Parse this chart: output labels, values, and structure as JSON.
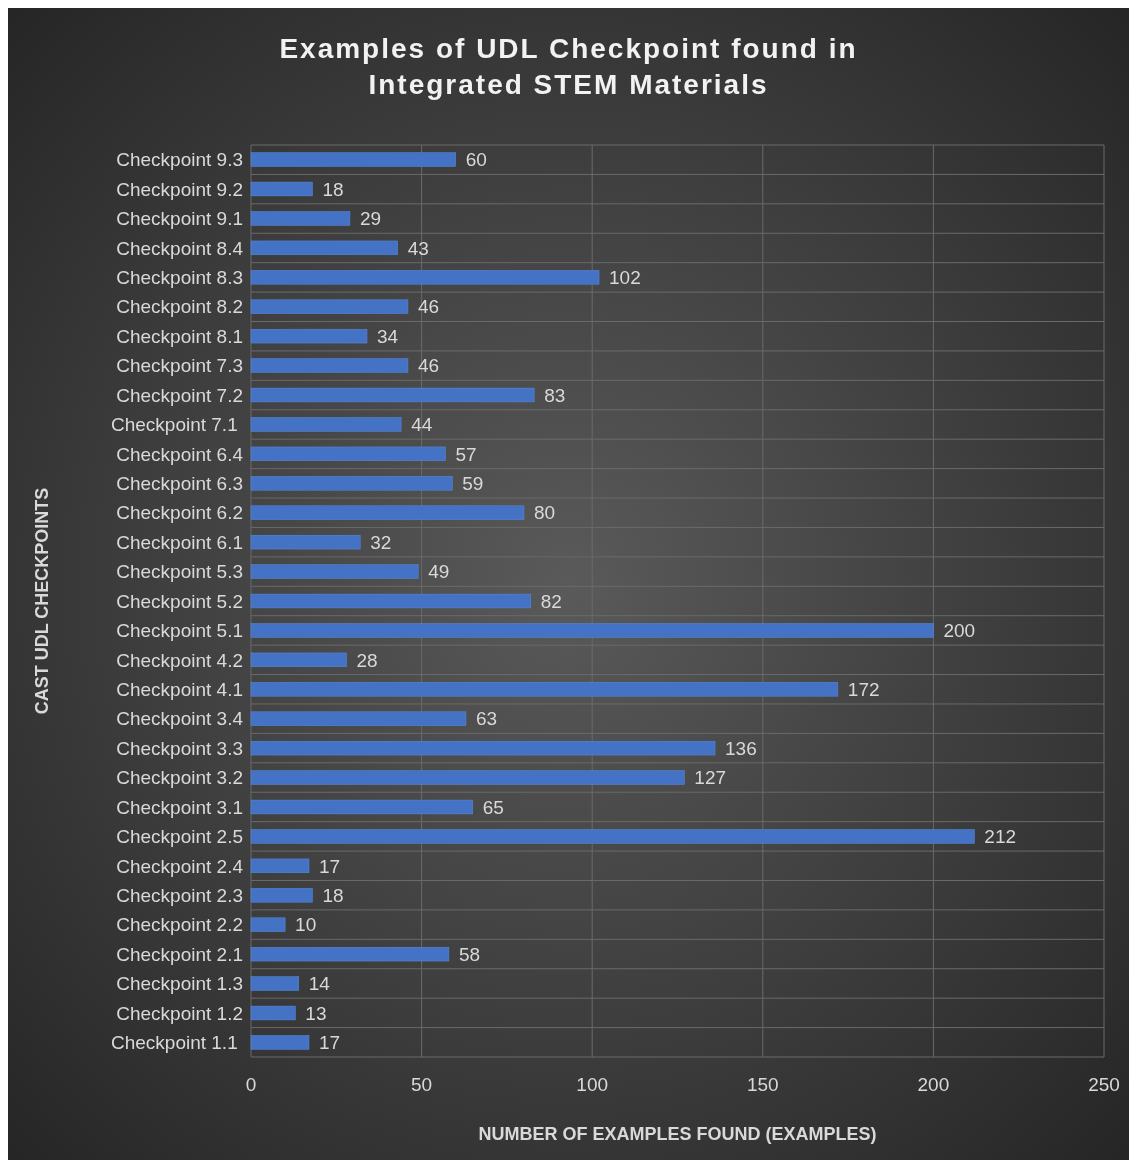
{
  "chart_data": {
    "type": "bar",
    "orientation": "horizontal",
    "title": "Examples of UDL Checkpoint found in Integrated STEM Materials",
    "xlabel": "NUMBER OF EXAMPLES FOUND (EXAMPLES)",
    "ylabel": "CAST UDL CHECKPOINTS",
    "categories": [
      "Checkpoint 9.3",
      "Checkpoint 9.2",
      "Checkpoint 9.1",
      "Checkpoint 8.4",
      "Checkpoint 8.3",
      "Checkpoint 8.2",
      "Checkpoint 8.1",
      "Checkpoint 7.3",
      "Checkpoint 7.2",
      "Checkpoint 7.1 ",
      "Checkpoint 6.4",
      "Checkpoint 6.3",
      "Checkpoint 6.2",
      "Checkpoint 6.1",
      "Checkpoint 5.3",
      "Checkpoint 5.2",
      "Checkpoint 5.1",
      "Checkpoint 4.2",
      "Checkpoint 4.1",
      "Checkpoint 3.4",
      "Checkpoint 3.3",
      "Checkpoint 3.2",
      "Checkpoint 3.1",
      "Checkpoint 2.5",
      "Checkpoint 2.4",
      "Checkpoint 2.3",
      "Checkpoint 2.2",
      "Checkpoint 2.1",
      "Checkpoint 1.3",
      "Checkpoint 1.2",
      "Checkpoint 1.1 "
    ],
    "values": [
      60,
      18,
      29,
      43,
      102,
      46,
      34,
      46,
      83,
      44,
      57,
      59,
      80,
      32,
      49,
      82,
      200,
      28,
      172,
      63,
      136,
      127,
      65,
      212,
      17,
      18,
      10,
      58,
      14,
      13,
      17
    ],
    "color": "#4472c4",
    "xlim": [
      0,
      250
    ],
    "xticks": [
      0,
      50,
      100,
      150,
      200,
      250
    ],
    "grid": true,
    "data_labels": true
  }
}
